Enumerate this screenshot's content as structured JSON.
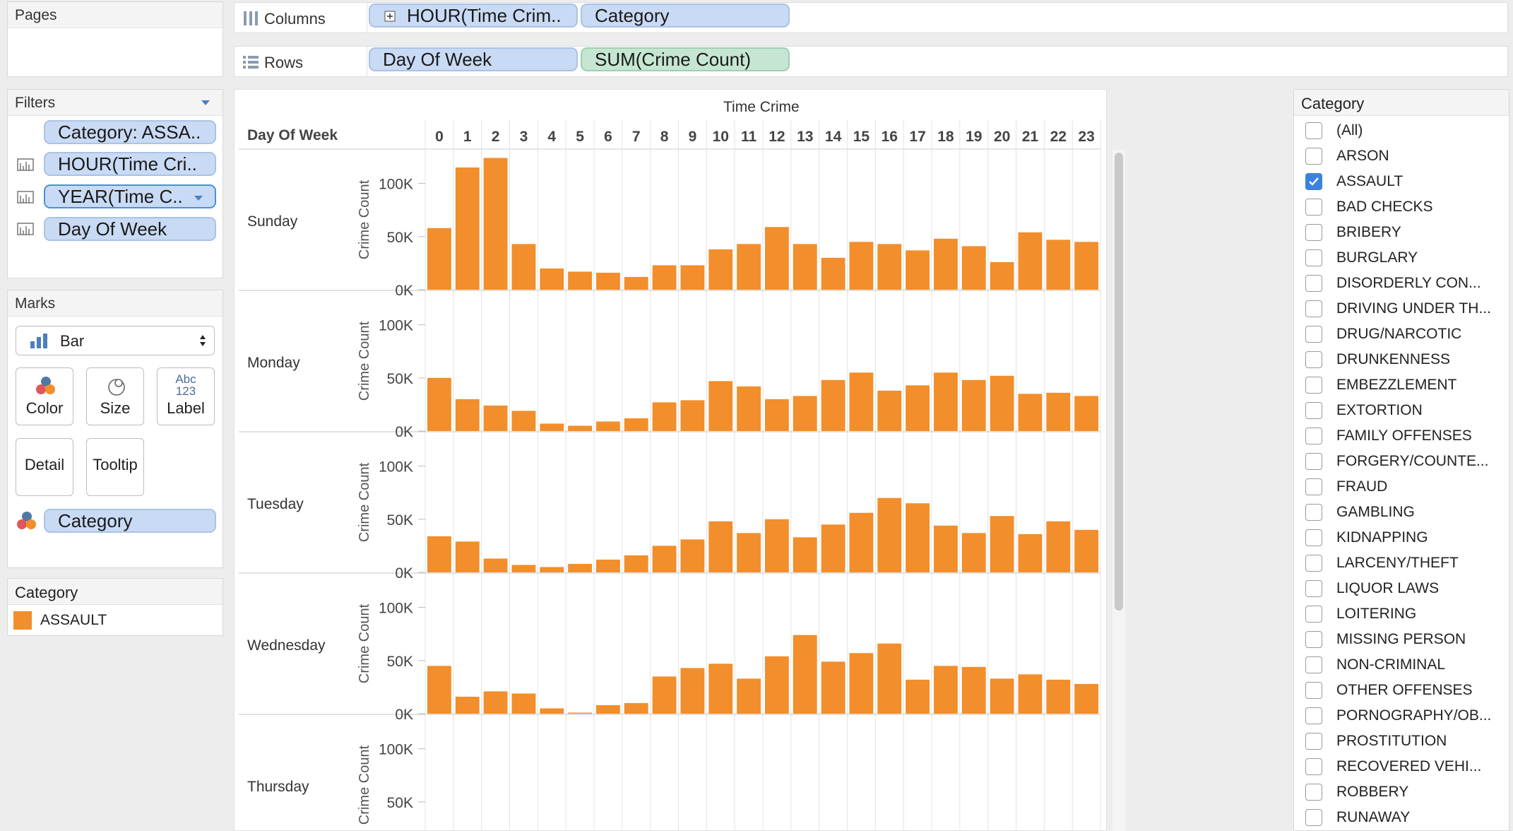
{
  "pages": {
    "title": "Pages"
  },
  "columns_shelf": {
    "label": "Columns",
    "pills": [
      "HOUR(Time Crim..",
      "Category"
    ]
  },
  "rows_shelf": {
    "label": "Rows",
    "pills": [
      "Day Of Week",
      "SUM(Crime Count)"
    ]
  },
  "filters": {
    "title": "Filters",
    "items": [
      "Category: ASSA..",
      "HOUR(Time Cri..",
      "YEAR(Time C..",
      "Day Of Week"
    ]
  },
  "marks": {
    "title": "Marks",
    "type": "Bar",
    "buttons": {
      "color": "Color",
      "size": "Size",
      "label": "Label",
      "label_icon": "Abc\n123",
      "detail": "Detail",
      "tooltip": "Tooltip"
    },
    "color_pill": "Category"
  },
  "legend": {
    "title": "Category",
    "item": "ASSAULT",
    "color": "#f28e2b"
  },
  "category_filter": {
    "title": "Category",
    "items": [
      {
        "label": "(All)",
        "checked": false
      },
      {
        "label": "ARSON",
        "checked": false
      },
      {
        "label": "ASSAULT",
        "checked": true
      },
      {
        "label": "BAD CHECKS",
        "checked": false
      },
      {
        "label": "BRIBERY",
        "checked": false
      },
      {
        "label": "BURGLARY",
        "checked": false
      },
      {
        "label": "DISORDERLY CON...",
        "checked": false
      },
      {
        "label": "DRIVING UNDER TH...",
        "checked": false
      },
      {
        "label": "DRUG/NARCOTIC",
        "checked": false
      },
      {
        "label": "DRUNKENNESS",
        "checked": false
      },
      {
        "label": "EMBEZZLEMENT",
        "checked": false
      },
      {
        "label": "EXTORTION",
        "checked": false
      },
      {
        "label": "FAMILY OFFENSES",
        "checked": false
      },
      {
        "label": "FORGERY/COUNTE...",
        "checked": false
      },
      {
        "label": "FRAUD",
        "checked": false
      },
      {
        "label": "GAMBLING",
        "checked": false
      },
      {
        "label": "KIDNAPPING",
        "checked": false
      },
      {
        "label": "LARCENY/THEFT",
        "checked": false
      },
      {
        "label": "LIQUOR LAWS",
        "checked": false
      },
      {
        "label": "LOITERING",
        "checked": false
      },
      {
        "label": "MISSING PERSON",
        "checked": false
      },
      {
        "label": "NON-CRIMINAL",
        "checked": false
      },
      {
        "label": "OTHER OFFENSES",
        "checked": false
      },
      {
        "label": "PORNOGRAPHY/OB...",
        "checked": false
      },
      {
        "label": "PROSTITUTION",
        "checked": false
      },
      {
        "label": "RECOVERED VEHI...",
        "checked": false
      },
      {
        "label": "ROBBERY",
        "checked": false
      },
      {
        "label": "RUNAWAY",
        "checked": false
      }
    ]
  },
  "chart_data": {
    "type": "bar",
    "title": "Time Crime",
    "row_header": "Day Of Week",
    "ylabel": "Crime Count",
    "ylim": [
      0,
      125000
    ],
    "yticks": [
      "0K",
      "50K",
      "100K"
    ],
    "categories": [
      "0",
      "1",
      "2",
      "3",
      "4",
      "5",
      "6",
      "7",
      "8",
      "9",
      "10",
      "11",
      "12",
      "13",
      "14",
      "15",
      "16",
      "17",
      "18",
      "19",
      "20",
      "21",
      "22",
      "23"
    ],
    "bar_color": "#f28e2b",
    "panels": [
      {
        "name": "Sunday",
        "values": [
          58000,
          115000,
          124000,
          43000,
          20000,
          17000,
          16000,
          12000,
          23000,
          23000,
          38000,
          43000,
          59000,
          43000,
          30000,
          45000,
          43000,
          37000,
          48000,
          41000,
          26000,
          54000,
          47000,
          45000
        ]
      },
      {
        "name": "Monday",
        "values": [
          50000,
          30000,
          24000,
          19000,
          7000,
          5000,
          9000,
          12000,
          27000,
          29000,
          47000,
          42000,
          30000,
          33000,
          48000,
          55000,
          38000,
          43000,
          55000,
          48000,
          52000,
          35000,
          36000,
          33000
        ]
      },
      {
        "name": "Tuesday",
        "values": [
          34000,
          29000,
          13000,
          7000,
          5000,
          8000,
          12000,
          16000,
          25000,
          31000,
          48000,
          37000,
          50000,
          33000,
          45000,
          56000,
          70000,
          65000,
          44000,
          37000,
          53000,
          36000,
          48000,
          40000
        ]
      },
      {
        "name": "Wednesday",
        "values": [
          45000,
          16000,
          21000,
          19000,
          5000,
          1000,
          8000,
          10000,
          35000,
          43000,
          47000,
          33000,
          54000,
          74000,
          49000,
          57000,
          66000,
          32000,
          45000,
          44000,
          33000,
          37000,
          32000,
          28000
        ]
      },
      {
        "name": "Thursday",
        "values": []
      }
    ]
  }
}
